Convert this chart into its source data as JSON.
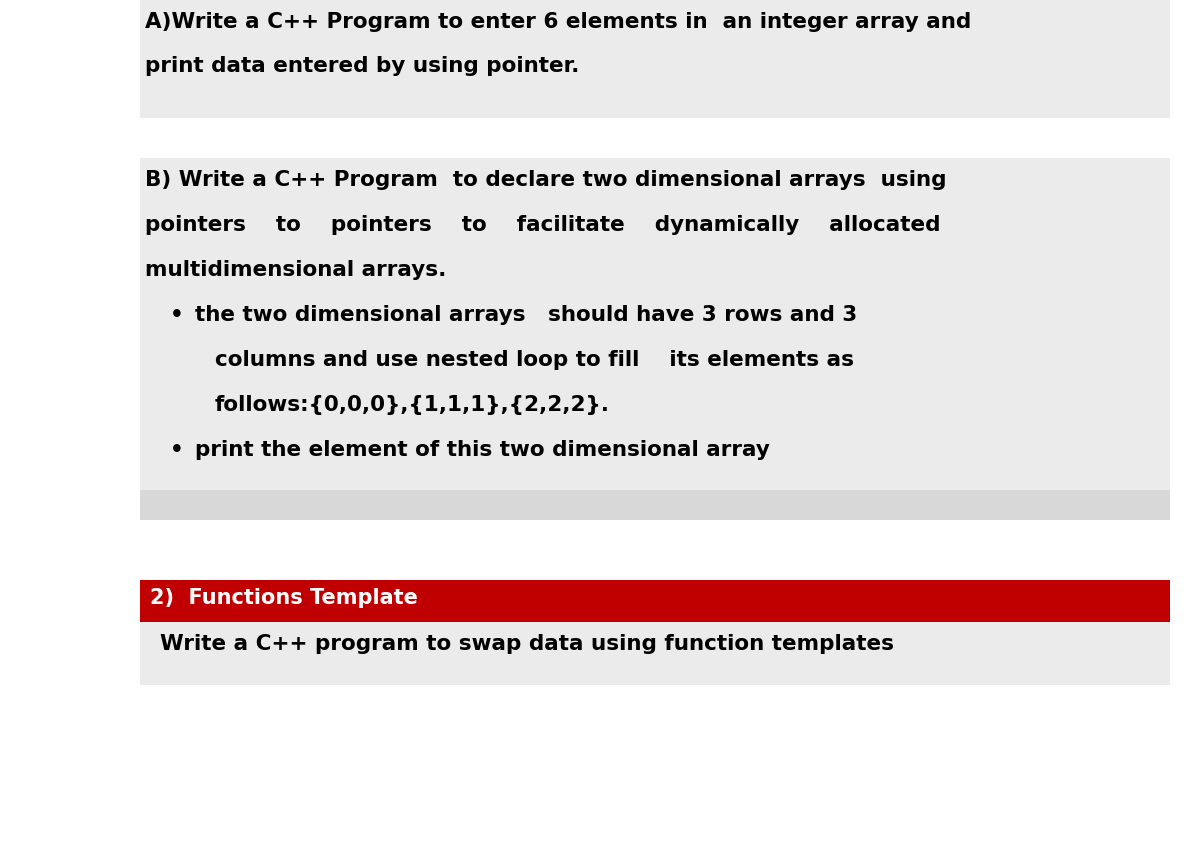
{
  "bg_color": "#ffffff",
  "sec1_bg": "#ebebeb",
  "sec2_bg": "#ebebeb",
  "sec2_bot_bg": "#d8d8d8",
  "red_bg": "#c00000",
  "red_text": "#ffffff",
  "sec3_bg": "#ebebeb",
  "black": "#000000",
  "line1": "A)Write a C++ Program to enter 6 elements in  an integer array and",
  "line2": "print data entered by using pointer.",
  "line3": "B) Write a C++ Program  to declare two dimensional arrays  using",
  "line4": "pointers    to    pointers    to    facilitate    dynamically    allocated",
  "line5": "multidimensional arrays.",
  "b1l1": "the two dimensional arrays   should have 3 rows and 3",
  "b1l2": "columns and use nested loop to fill    its elements as",
  "b1l3": "follows:{0,0,0},{1,1,1},{2,2,2}.",
  "b2": "print the element of this two dimensional array",
  "banner": "2)  Functions Template",
  "swap": "Write a C++ program to swap data using function templates",
  "fs": 15.5,
  "fs_banner": 15.0
}
